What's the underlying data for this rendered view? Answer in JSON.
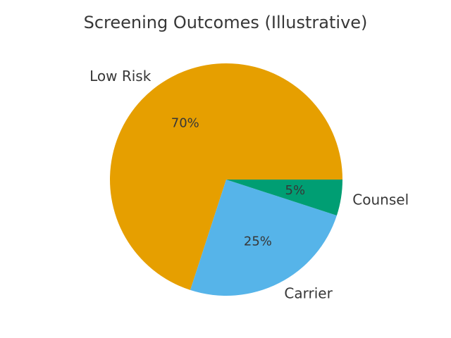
{
  "chart_data": {
    "type": "pie",
    "title": "Screening Outcomes (Illustrative)",
    "labels": [
      "Low Risk",
      "Carrier",
      "Counsel"
    ],
    "values": [
      70,
      25,
      5
    ],
    "percent_labels": [
      "70%",
      "25%",
      "5%"
    ],
    "colors": [
      "#E69F00",
      "#56B4E9",
      "#009E73"
    ],
    "startangle": 0,
    "counterclock": true,
    "pctdistance": 0.6,
    "labeldistance": 1.1,
    "legend": "none",
    "background_color": "#ffffff",
    "text_color": "#373737"
  }
}
